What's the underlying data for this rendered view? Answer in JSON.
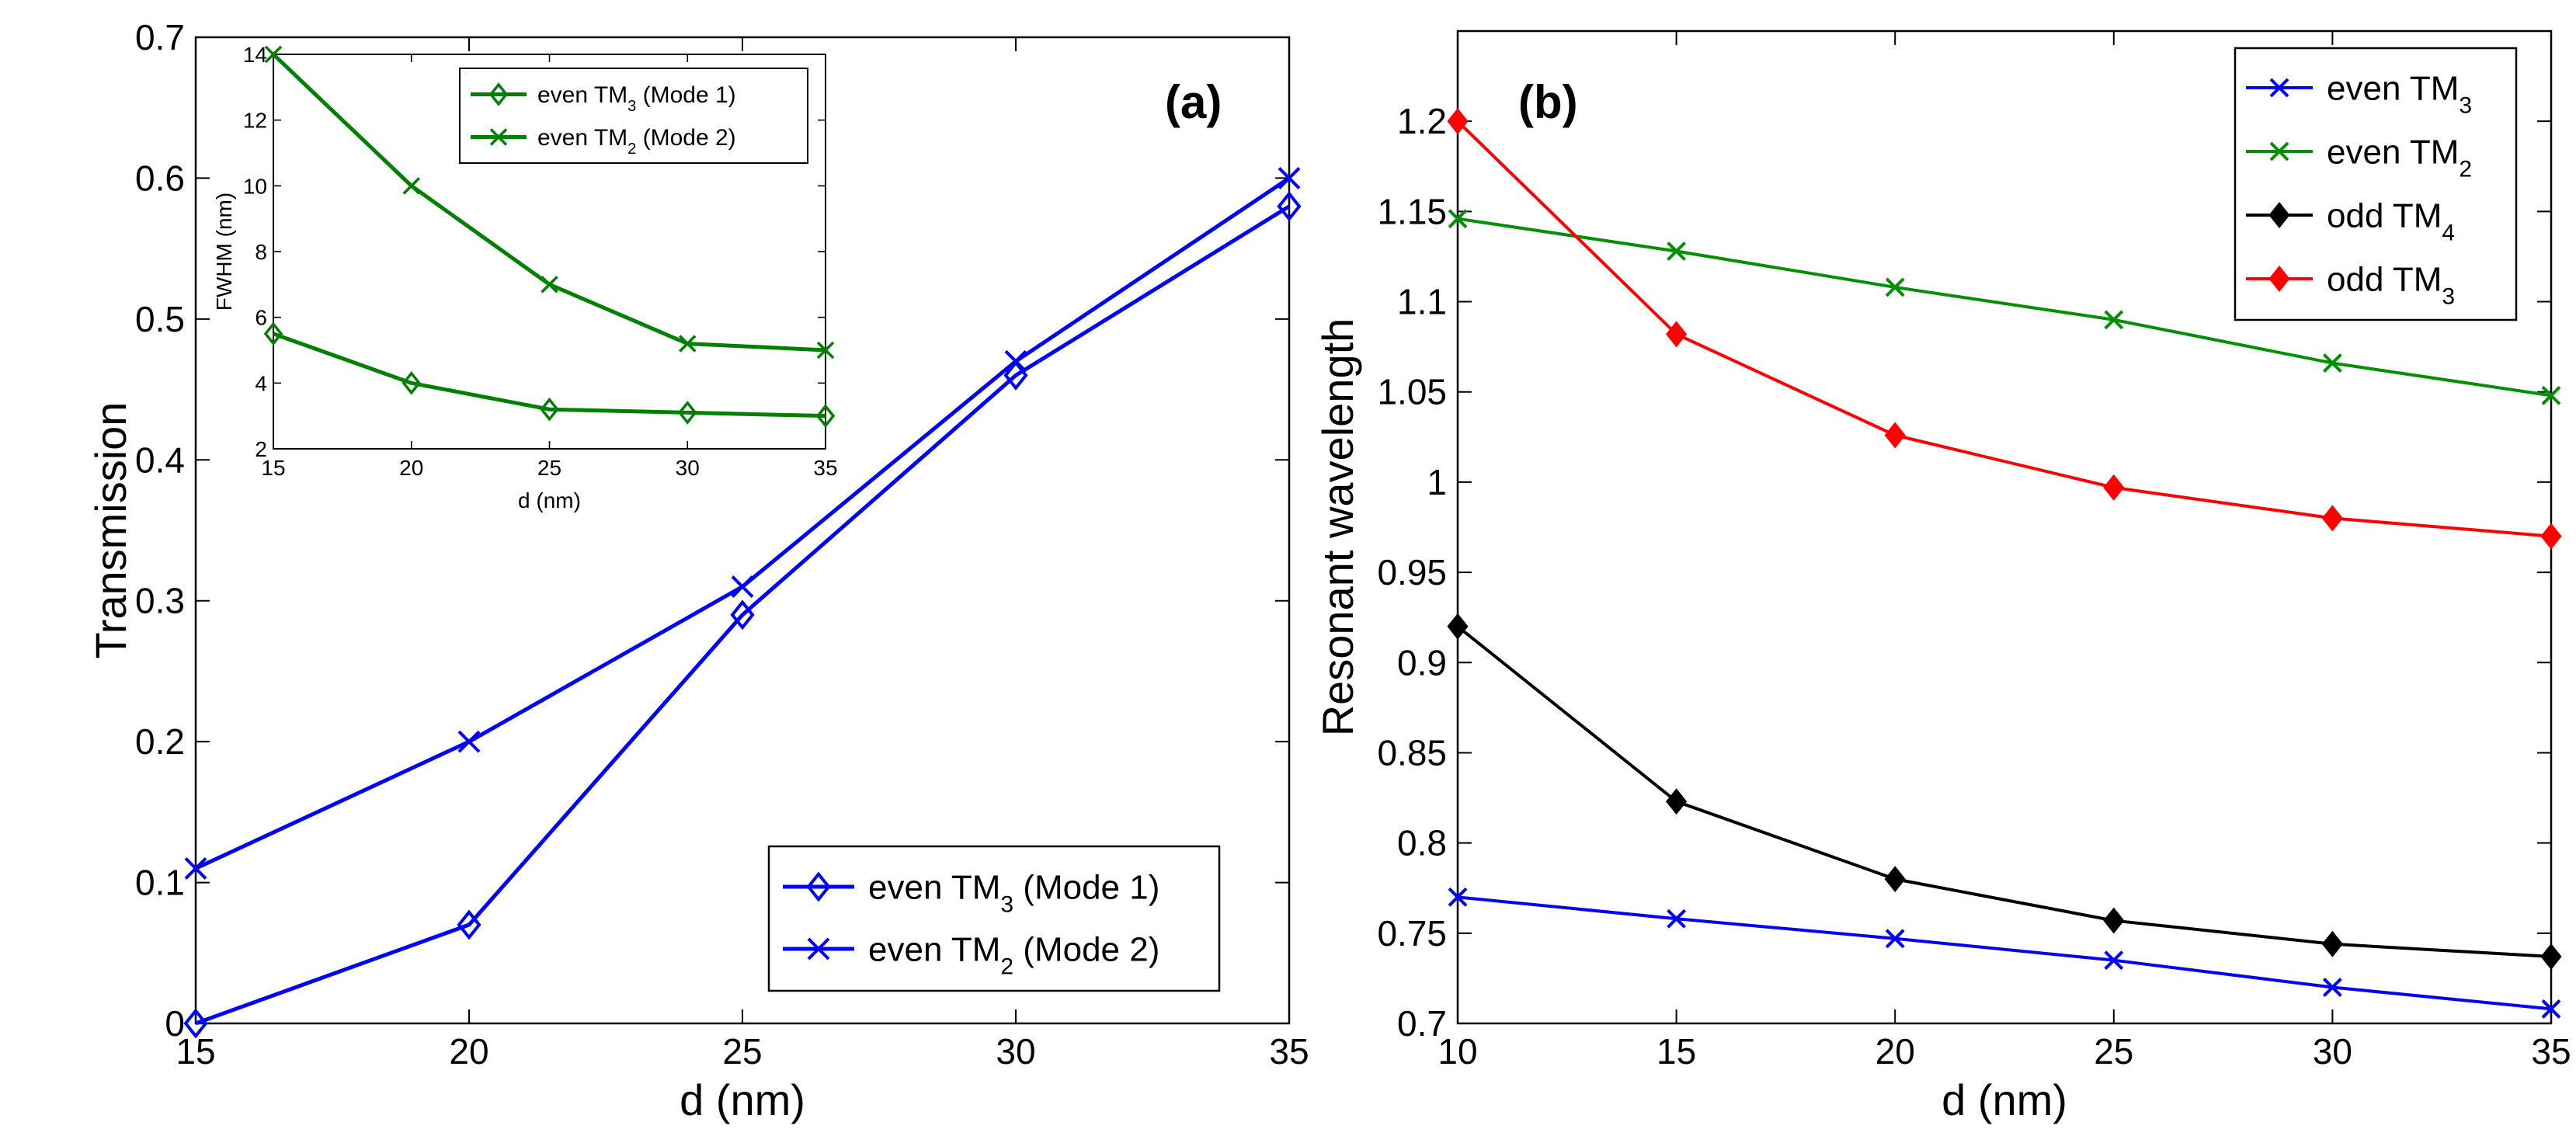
{
  "chart_data": [
    {
      "id": "a",
      "type": "line",
      "panel_label": "(a)",
      "xlabel": "d (nm)",
      "ylabel": "Transmission",
      "xlim": [
        15,
        35
      ],
      "ylim": [
        0,
        0.7
      ],
      "xticks": [
        15,
        20,
        25,
        30,
        35
      ],
      "yticks": [
        0,
        0.1,
        0.2,
        0.3,
        0.4,
        0.5,
        0.6,
        0.7
      ],
      "x": [
        15,
        20,
        25,
        30,
        35
      ],
      "legend_position": "bottom-right",
      "series": [
        {
          "name": "even TM",
          "sub": "3",
          "suffix": " (Mode 1)",
          "color": "#0000ff",
          "marker": "diamond",
          "values": [
            0.0,
            0.07,
            0.29,
            0.46,
            0.58
          ]
        },
        {
          "name": "even TM",
          "sub": "2",
          "suffix": " (Mode 2)",
          "color": "#0000ff",
          "marker": "x",
          "values": [
            0.11,
            0.2,
            0.31,
            0.47,
            0.6
          ]
        }
      ]
    },
    {
      "id": "a-inset",
      "type": "line",
      "xlabel": "d (nm)",
      "ylabel": "FWHM (nm)",
      "xlim": [
        15,
        35
      ],
      "ylim": [
        2,
        14
      ],
      "xticks": [
        15,
        20,
        25,
        30,
        35
      ],
      "yticks": [
        2,
        4,
        6,
        8,
        10,
        12,
        14
      ],
      "x": [
        15,
        20,
        25,
        30,
        35
      ],
      "legend_position": "top-right",
      "series": [
        {
          "name": "even TM",
          "sub": "3",
          "suffix": " (Mode 1)",
          "color": "#008000",
          "marker": "diamond",
          "values": [
            5.5,
            4.0,
            3.2,
            3.1,
            3.0
          ]
        },
        {
          "name": "even TM",
          "sub": "2",
          "suffix": " (Mode 2)",
          "color": "#008000",
          "marker": "x",
          "values": [
            14.0,
            10.0,
            7.0,
            5.2,
            5.0
          ]
        }
      ]
    },
    {
      "id": "b",
      "type": "line",
      "panel_label": "(b)",
      "xlabel": "d (nm)",
      "ylabel": "Resonant wavelength",
      "xlim": [
        10,
        35
      ],
      "ylim": [
        0.7,
        1.25
      ],
      "xticks": [
        10,
        15,
        20,
        25,
        30,
        35
      ],
      "yticks": [
        0.7,
        0.75,
        0.8,
        0.85,
        0.9,
        0.95,
        1,
        1.05,
        1.1,
        1.15,
        1.2
      ],
      "x": [
        10,
        15,
        20,
        25,
        30,
        35
      ],
      "legend_position": "top-right",
      "series": [
        {
          "name": "even TM",
          "sub": "3",
          "suffix": "",
          "color": "#0000ff",
          "marker": "x",
          "values": [
            0.77,
            0.758,
            0.747,
            0.735,
            0.72,
            0.708
          ]
        },
        {
          "name": "even TM",
          "sub": "2",
          "suffix": "",
          "color": "#009000",
          "marker": "x",
          "values": [
            1.146,
            1.128,
            1.108,
            1.09,
            1.066,
            1.048
          ]
        },
        {
          "name": "odd TM",
          "sub": "4",
          "suffix": "",
          "color": "#000000",
          "marker": "diamond-filled",
          "values": [
            0.92,
            0.823,
            0.78,
            0.757,
            0.744,
            0.737
          ]
        },
        {
          "name": "odd TM",
          "sub": "3",
          "suffix": "",
          "color": "#ff0000",
          "marker": "diamond-filled",
          "values": [
            1.2,
            1.082,
            1.026,
            0.997,
            0.98,
            0.97
          ]
        }
      ]
    }
  ]
}
